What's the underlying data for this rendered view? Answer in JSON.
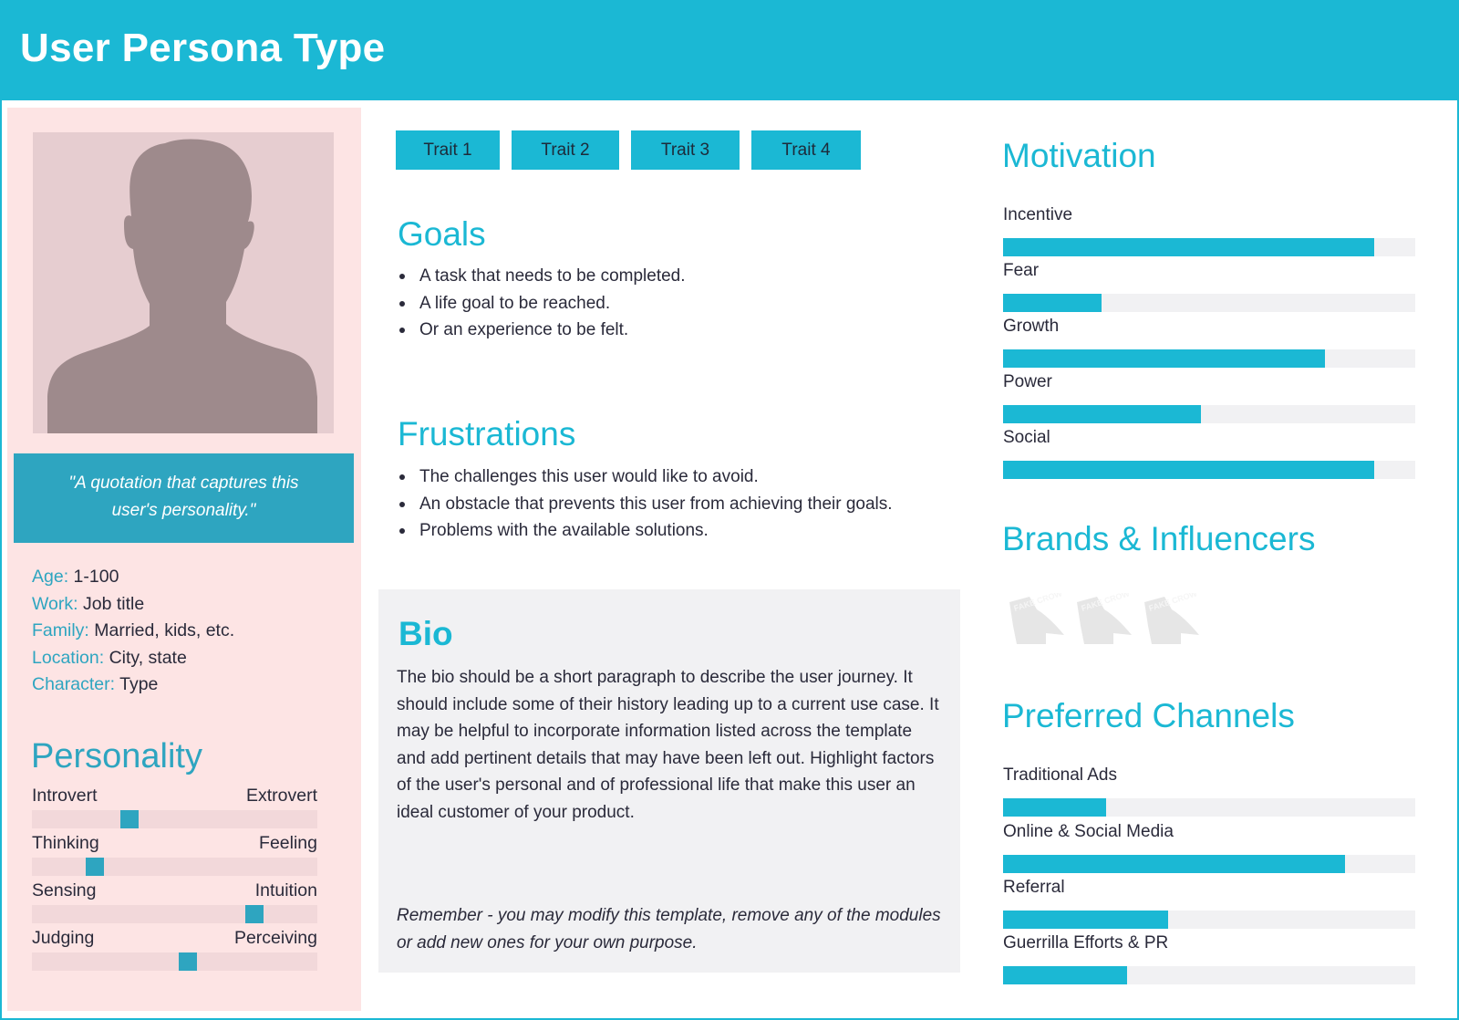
{
  "header": {
    "title": "User Persona Type"
  },
  "profile": {
    "photo_icon": "person-silhouette",
    "quote": "\"A quotation that captures this user's personality.\"",
    "info": [
      {
        "key": "Age:",
        "value": "1-100"
      },
      {
        "key": "Work:",
        "value": "Job title"
      },
      {
        "key": "Family:",
        "value": "Married, kids, etc."
      },
      {
        "key": "Location:",
        "value": "City, state"
      },
      {
        "key": "Character:",
        "value": "Type"
      }
    ]
  },
  "personality": {
    "title": "Personality",
    "scales": [
      {
        "left": "Introvert",
        "right": "Extrovert",
        "position_pct": 33
      },
      {
        "left": "Thinking",
        "right": "Feeling",
        "position_pct": 20
      },
      {
        "left": "Sensing",
        "right": "Intuition",
        "position_pct": 80
      },
      {
        "left": "Judging",
        "right": "Perceiving",
        "position_pct": 55
      }
    ]
  },
  "traits": [
    "Trait 1",
    "Trait 2",
    "Trait 3",
    "Trait 4"
  ],
  "goals": {
    "title": "Goals",
    "items": [
      "A task that needs to be completed.",
      "A life goal to be reached.",
      "Or an experience to be felt."
    ]
  },
  "frustrations": {
    "title": "Frustrations",
    "items": [
      "The challenges this user would like to avoid.",
      "An obstacle that prevents this user from achieving their goals.",
      "Problems with the available solutions."
    ]
  },
  "bio": {
    "title": "Bio",
    "text": "The bio should be a short paragraph to describe the user journey. It should include some of their history leading up to a current use case. It may be helpful to incorporate information listed across the template and add pertinent details that may have been left out. Highlight factors of the user's personal and of professional life that make this user an ideal customer of your product.",
    "note": "Remember - you may modify this template, remove any of the modules or add new ones for your own purpose."
  },
  "motivation": {
    "title": "Motivation",
    "items": [
      {
        "label": "Incentive",
        "value": 90
      },
      {
        "label": "Fear",
        "value": 24
      },
      {
        "label": "Growth",
        "value": 78
      },
      {
        "label": "Power",
        "value": 48
      },
      {
        "label": "Social",
        "value": 90
      }
    ]
  },
  "brands": {
    "title": "Brands & Influencers",
    "logos": [
      {
        "icon": "fake-crow-logo",
        "text": "FAKE CROW"
      },
      {
        "icon": "fake-crow-logo",
        "text": "FAKE CROW"
      },
      {
        "icon": "fake-crow-logo",
        "text": "FAKE CROW"
      }
    ]
  },
  "channels": {
    "title": "Preferred Channels",
    "items": [
      {
        "label": "Traditional Ads",
        "value": 25
      },
      {
        "label": "Online & Social Media",
        "value": 83
      },
      {
        "label": "Referral",
        "value": 40
      },
      {
        "label": "Guerrilla Efforts & PR",
        "value": 30
      }
    ]
  },
  "colors": {
    "accent": "#1bb8d4",
    "accent_dark": "#2ea5c0",
    "left_panel_bg": "#fde4e4",
    "bio_bg": "#f1f1f3",
    "track_bg": "#f1f1f3"
  }
}
